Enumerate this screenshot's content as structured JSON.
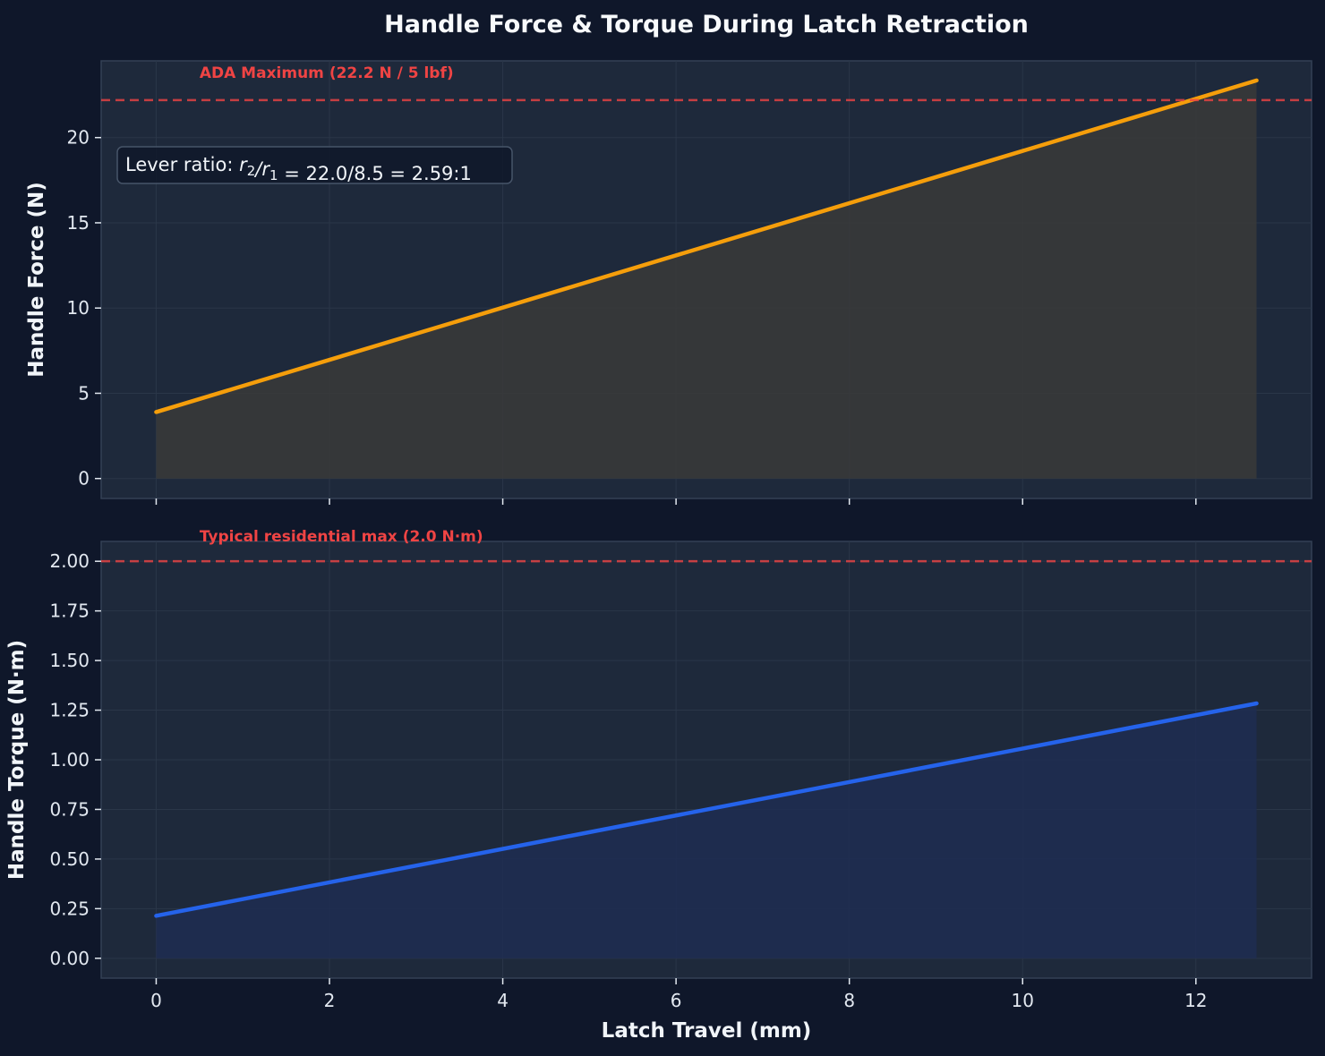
{
  "figure": {
    "title": "Handle Force & Torque During Latch Retraction",
    "xlabel": "Latch Travel (mm)"
  },
  "colors": {
    "background": "#0f172a",
    "panel": "#1e293b",
    "force_line": "#f59e0b",
    "force_fill": "#3a3a3a",
    "torque_line": "#2563eb",
    "torque_fill": "#1e2d52",
    "reference": "#ef4444",
    "text": "#f1f5f9"
  },
  "chart_data": [
    {
      "type": "area",
      "ylabel": "Handle Force (N)",
      "xlim": [
        -0.635,
        13.335
      ],
      "ylim": [
        -1.17,
        24.5
      ],
      "x_ticks": [
        0,
        2,
        4,
        6,
        8,
        10,
        12
      ],
      "y_ticks": [
        0,
        5,
        10,
        15,
        20
      ],
      "x_tick_labels_visible": false,
      "series": [
        {
          "x": [
            0,
            12.7
          ],
          "y": [
            3.9,
            23.35
          ]
        }
      ],
      "reference_line": {
        "y": 22.2,
        "style": "dashed",
        "label": "ADA Maximum (22.2 N / 5 lbf)"
      },
      "annotation": {
        "prefix": "Lever ratio: ",
        "r2": "r",
        "r2_sub": "2",
        "slash": "/",
        "r1": "r",
        "r1_sub": "1",
        "suffix": " = 22.0/8.5 = 2.59:1"
      },
      "grid": true
    },
    {
      "type": "area",
      "ylabel": "Handle Torque (N·m)",
      "xlim": [
        -0.635,
        13.335
      ],
      "ylim": [
        -0.1,
        2.1
      ],
      "x_ticks": [
        0,
        2,
        4,
        6,
        8,
        10,
        12
      ],
      "x_tick_labels": [
        "0",
        "2",
        "4",
        "6",
        "8",
        "10",
        "12"
      ],
      "y_ticks": [
        0,
        0.25,
        0.5,
        0.75,
        1.0,
        1.25,
        1.5,
        1.75,
        2.0
      ],
      "y_tick_labels": [
        "0.00",
        "0.25",
        "0.50",
        "0.75",
        "1.00",
        "1.25",
        "1.50",
        "1.75",
        "2.00"
      ],
      "series": [
        {
          "x": [
            0,
            12.7
          ],
          "y": [
            0.214,
            1.284
          ]
        }
      ],
      "reference_line": {
        "y": 2.0,
        "style": "dashed",
        "label": "Typical residential max (2.0 N·m)"
      },
      "grid": true
    }
  ]
}
